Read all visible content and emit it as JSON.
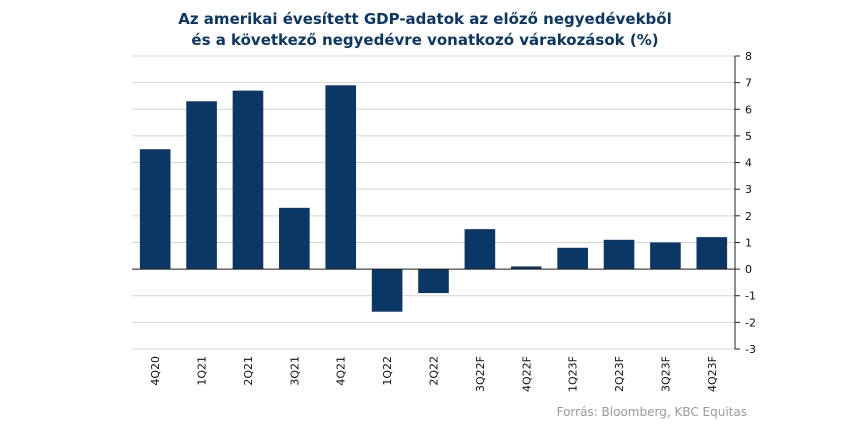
{
  "chart_data": {
    "type": "bar",
    "title_lines": [
      "Az amerikai évesített GDP-adatok az előző negyedévekből",
      "és a következő negyedévre  vonatkozó várakozások (%)"
    ],
    "categories": [
      "4Q20",
      "1Q21",
      "2Q21",
      "3Q21",
      "4Q21",
      "1Q22",
      "2Q22",
      "3Q22F",
      "4Q22F",
      "1Q23F",
      "2Q23F",
      "3Q23F",
      "4Q23F"
    ],
    "values": [
      4.5,
      6.3,
      6.7,
      2.3,
      6.9,
      -1.6,
      -0.9,
      1.5,
      0.1,
      0.8,
      1.1,
      1.0,
      1.2
    ],
    "ylim": [
      -3,
      8
    ],
    "yticks": [
      8,
      7,
      6,
      5,
      4,
      3,
      2,
      1,
      0,
      -1,
      -2,
      -3
    ],
    "y_axis_position": "right",
    "grid": true,
    "bar_color": "#0a3766"
  },
  "source": "Forrás: Bloomberg,  KBC Equitas"
}
